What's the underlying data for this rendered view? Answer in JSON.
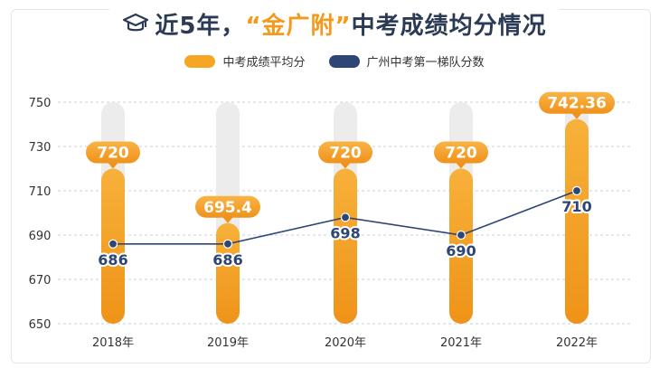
{
  "title": {
    "prefix": "近5年，",
    "highlight": "“金广附”",
    "suffix": "中考成绩均分情况"
  },
  "chart_data": {
    "type": "bar",
    "categories": [
      "2018年",
      "2019年",
      "2020年",
      "2021年",
      "2022年"
    ],
    "series": [
      {
        "name": "中考成绩平均分",
        "type": "bar",
        "color": "#f5a623",
        "values": [
          720,
          695.4,
          720,
          720,
          742.36
        ],
        "labels": [
          "720",
          "695.4",
          "720",
          "720",
          "742.36"
        ]
      },
      {
        "name": "广州中考第一梯队分数",
        "type": "line",
        "color": "#2d4676",
        "values": [
          686,
          686,
          698,
          690,
          710
        ],
        "labels": [
          "686",
          "686",
          "698",
          "690",
          "710"
        ]
      }
    ],
    "yticks": [
      "750",
      "730",
      "710",
      "690",
      "670",
      "650"
    ],
    "ylim": [
      650,
      750
    ],
    "grid": true,
    "legend_position": "top-center"
  }
}
